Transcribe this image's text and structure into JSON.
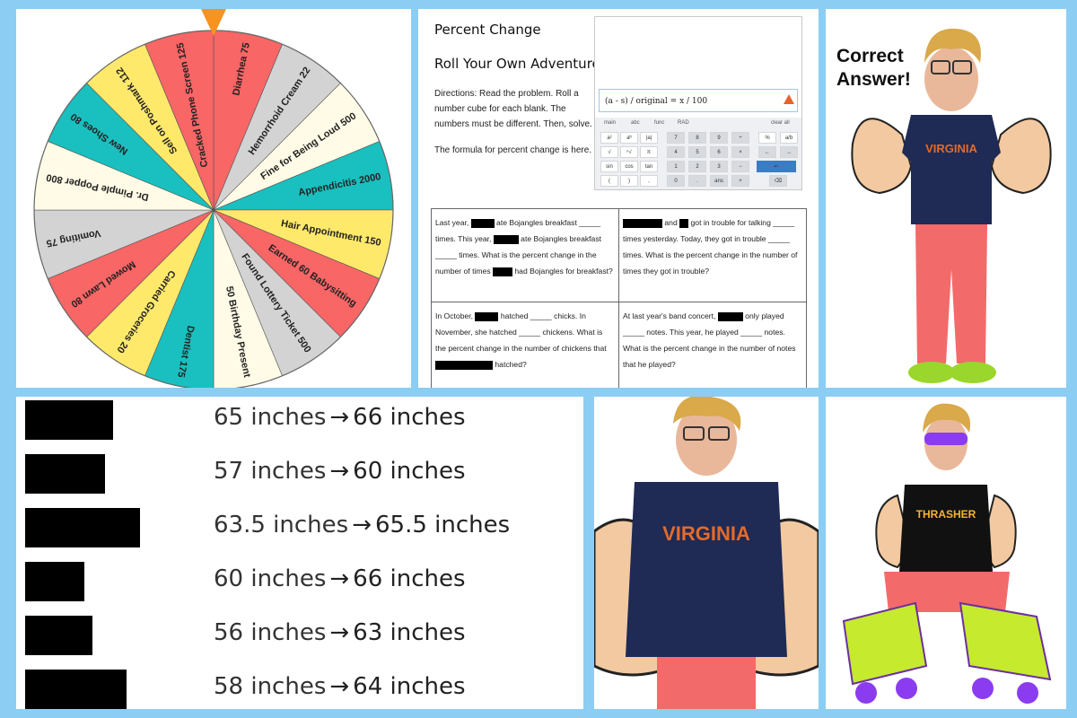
{
  "wheel": {
    "segments": [
      {
        "label": "Diarrhea 75",
        "color": "#f86666"
      },
      {
        "label": "Hemorrhoid Cream 22",
        "color": "#d3d3d3"
      },
      {
        "label": "Fine for Being Loud 500",
        "color": "#fffbe6"
      },
      {
        "label": "Appendicitis 2000",
        "color": "#19c0bf"
      },
      {
        "label": "Hair Appointment 150",
        "color": "#ffe96b"
      },
      {
        "label": "Earned 60 Babysitting",
        "color": "#f86666"
      },
      {
        "label": "Found Lottery Ticket 500",
        "color": "#d3d3d3"
      },
      {
        "label": "50 Birthday Present",
        "color": "#fffbe6"
      },
      {
        "label": "Dentist 175",
        "color": "#19c0bf"
      },
      {
        "label": "Carried Groceries 20",
        "color": "#ffe96b"
      },
      {
        "label": "Mowed Lawn 80",
        "color": "#f86666"
      },
      {
        "label": "Vomiting 75",
        "color": "#d3d3d3"
      },
      {
        "label": "Dr. Pimple Popper 800",
        "color": "#fffbe6"
      },
      {
        "label": "New Shoes 80",
        "color": "#19c0bf"
      },
      {
        "label": "Sell on Poshmark 112",
        "color": "#ffe96b"
      },
      {
        "label": "Cracked Phone Screen 125",
        "color": "#f86666"
      }
    ],
    "pointer_color": "#f7931e"
  },
  "doc": {
    "title": "Percent Change",
    "subtitle": "Roll Your Own Adventure",
    "directions": "Directions: Read the problem. Roll a number cube for each blank. The numbers must be different. Then, solve.",
    "formula_note": "The formula for percent change is here. →",
    "calculator": {
      "expression": "(a - s) / original = x / 100",
      "tabs": [
        "main",
        "abc",
        "func",
        "RAD",
        "clear all"
      ],
      "keys": [
        "a²",
        "aᵇ",
        "|a|",
        "√",
        "ⁿ√",
        "π",
        "sin",
        "cos",
        "tan",
        "(",
        ")",
        ",",
        "7",
        "8",
        "9",
        "÷",
        "4",
        "5",
        "6",
        "×",
        "1",
        "2",
        "3",
        "−",
        "0",
        ".",
        "ans",
        "+",
        "%",
        "a/b",
        "←",
        "→",
        "⌫",
        "↵"
      ]
    },
    "questions": [
      {
        "parts": [
          "Last year, ",
          "",
          " ate Bojangles breakfast _____ times. This year, ",
          "",
          " ate Bojangles breakfast _____ times. What is the percent change in the number of times ",
          "",
          " had Bojangles for breakfast?"
        ]
      },
      {
        "parts": [
          "",
          "",
          " and ",
          "",
          " got in trouble for talking _____ times yesterday. Today, they got in trouble _____ times. What is the percent change in the number of times they got in trouble?"
        ]
      },
      {
        "parts": [
          "In October, ",
          "",
          " hatched _____ chicks. In November, she hatched _____ chickens. What is the percent change in the number of chickens that ",
          "",
          " hatched?"
        ]
      },
      {
        "parts": [
          "At last year's band concert, ",
          "",
          " only played _____ notes. This year, he played _____ notes. What is the percent change in the number of notes that he played?"
        ]
      }
    ]
  },
  "correct": {
    "line1": "Correct",
    "line2": "Answer!"
  },
  "shirt": {
    "text": "VIRGINIA",
    "color": "#1f2a55",
    "accent": "#e36b2a"
  },
  "shirt2": {
    "text": "THRASHER"
  },
  "heights": {
    "rows": [
      {
        "before": "65 inches",
        "arrow": "→",
        "after": "66 inches",
        "redact_width": 0.155
      },
      {
        "before": "57 inches",
        "arrow": "→",
        "after": "60 inches",
        "redact_width": 0.141
      },
      {
        "before": "63.5 inches",
        "arrow": "→",
        "after": "65.5 inches",
        "redact_width": 0.203
      },
      {
        "before": "60 inches",
        "arrow": "→",
        "after": "66 inches",
        "redact_width": 0.104
      },
      {
        "before": "56 inches",
        "arrow": "→",
        "after": "63 inches",
        "redact_width": 0.118
      },
      {
        "before": "58 inches",
        "arrow": "→",
        "after": "64 inches",
        "redact_width": 0.179
      }
    ]
  }
}
